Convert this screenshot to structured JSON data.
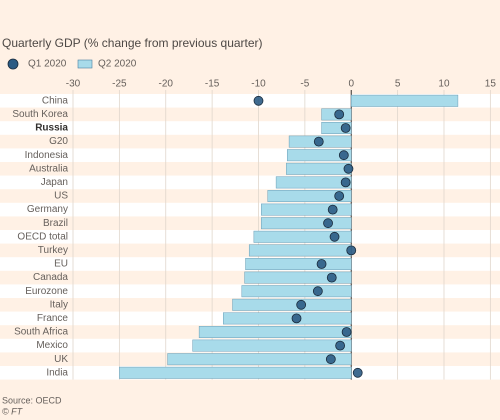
{
  "chart_data": {
    "type": "bar",
    "subtitle": "Quarterly GDP (% change from previous quarter)",
    "categories": [
      "China",
      "South Korea",
      "Russia",
      "G20",
      "Indonesia",
      "Australia",
      "Japan",
      "US",
      "Germany",
      "Brazil",
      "OECD total",
      "Turkey",
      "EU",
      "Canada",
      "Eurozone",
      "Italy",
      "France",
      "South Africa",
      "Mexico",
      "UK",
      "India"
    ],
    "highlight": "Russia",
    "series": [
      {
        "name": "Q1 2020",
        "color": "#2b5b84",
        "marker": "dot",
        "values": [
          -10,
          -1.3,
          -0.6,
          -3.5,
          -0.8,
          -0.3,
          -0.6,
          -1.3,
          -2.0,
          -2.5,
          -1.8,
          0,
          -3.2,
          -2.1,
          -3.6,
          -5.4,
          -5.9,
          -0.5,
          -1.2,
          -2.2,
          0.7
        ]
      },
      {
        "name": "Q2 2020",
        "color": "#a8dbea",
        "marker": "bar",
        "values": [
          11.5,
          -3.2,
          -3.2,
          -6.7,
          -6.9,
          -7.0,
          -8.1,
          -9.0,
          -9.7,
          -9.7,
          -10.5,
          -11.0,
          -11.4,
          -11.5,
          -11.8,
          -12.8,
          -13.8,
          -16.4,
          -17.1,
          -19.8,
          -25.0
        ]
      }
    ],
    "xlim": [
      -30,
      15.5
    ],
    "xticks": [
      -30,
      -25,
      -20,
      -15,
      -10,
      -5,
      0,
      5,
      10,
      15
    ],
    "source": "Source: OECD",
    "credit": "© FT"
  }
}
